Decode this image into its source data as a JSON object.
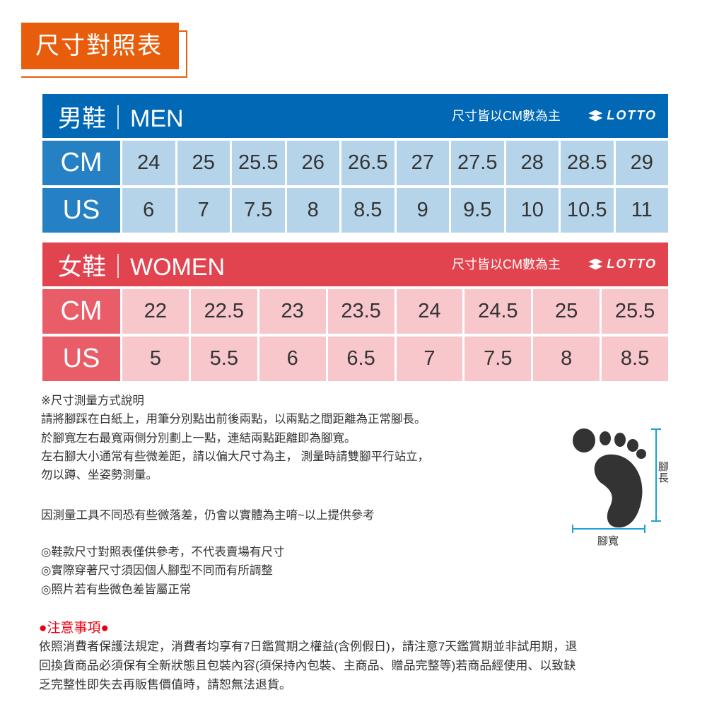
{
  "title": "尺寸對照表",
  "men": {
    "title": "男鞋｜MEN",
    "note": "尺寸皆以CM數為主",
    "brand": "LOTTO",
    "color": "#0068b4",
    "rows": [
      {
        "label": "CM",
        "values": [
          "24",
          "25",
          "25.5",
          "26",
          "26.5",
          "27",
          "27.5",
          "28",
          "28.5",
          "29"
        ]
      },
      {
        "label": "US",
        "values": [
          "6",
          "7",
          "7.5",
          "8",
          "8.5",
          "9",
          "9.5",
          "10",
          "10.5",
          "11"
        ]
      }
    ]
  },
  "women": {
    "title": "女鞋｜WOMEN",
    "note": "尺寸皆以CM數為主",
    "brand": "LOTTO",
    "color": "#e2444f",
    "rows": [
      {
        "label": "CM",
        "values": [
          "22",
          "22.5",
          "23",
          "23.5",
          "24",
          "24.5",
          "25",
          "25.5"
        ]
      },
      {
        "label": "US",
        "values": [
          "5",
          "5.5",
          "6",
          "6.5",
          "7",
          "7.5",
          "8",
          "8.5"
        ]
      }
    ]
  },
  "measure": {
    "heading": "※尺寸測量方式說明",
    "lines": [
      "請將腳踩在白紙上，用筆分別點出前後兩點，以兩點之間距離為正常腳長。",
      "於腳寬左右最寬兩側分別劃上一點，連結兩點距離即為腳寬。",
      "左右腳大小通常有些微差距，請以偏大尺寸為主， 測量時請雙腳平行站立，",
      "勿以蹲、坐姿勢測量。"
    ],
    "disclaimer": "因測量工具不同恐有些微落差，仍會以實體為主唷~以上提供參考",
    "bullets": [
      "◎鞋款尺寸對照表僅供參考，不代表賣場有尺寸",
      "◎實際穿著尺寸須因個人腳型不同而有所調整",
      "◎照片若有些微色差皆屬正常"
    ]
  },
  "diagram": {
    "length_label": "腳長",
    "width_label": "腳寬"
  },
  "notice": {
    "title": "●注意事項●",
    "lines": [
      "依照消費者保護法規定，消費者均享有7日鑑賞期之權益(含例假日)，請注意7天鑑賞期並非試用期，退",
      "回換貨商品必須保有全新狀態且包裝內容(須保持內包裝、主商品、贈品完整等)若商品經使用、以致缺",
      "乏完整性即失去再販售價值時，請恕無法退貨。"
    ]
  }
}
